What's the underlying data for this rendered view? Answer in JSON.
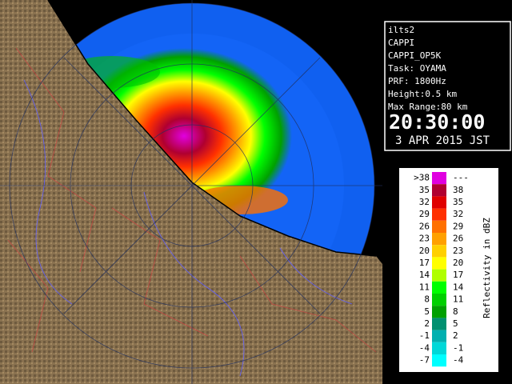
{
  "info": {
    "lines": [
      "ilts2",
      "CAPPI",
      "CAPPI_OP5K",
      "Task: OYAMA",
      "PRF: 1800Hz",
      "Height:0.5 km",
      "Max Range:80 km"
    ],
    "time": "20:30:00",
    "date": "3 APR 2015 JST"
  },
  "legend": {
    "label": "Reflectivity in dBZ",
    "rows": [
      {
        "low": ">38",
        "high": "---",
        "color": "#e000e0"
      },
      {
        "low": "35",
        "high": "38",
        "color": "#b00030"
      },
      {
        "low": "32",
        "high": "35",
        "color": "#e00000"
      },
      {
        "low": "29",
        "high": "32",
        "color": "#ff3000"
      },
      {
        "low": "26",
        "high": "29",
        "color": "#ff7000"
      },
      {
        "low": "23",
        "high": "26",
        "color": "#ffa000"
      },
      {
        "low": "20",
        "high": "23",
        "color": "#ffd000"
      },
      {
        "low": "17",
        "high": "20",
        "color": "#ffff00"
      },
      {
        "low": "14",
        "high": "17",
        "color": "#b0ff00"
      },
      {
        "low": "11",
        "high": "14",
        "color": "#00ff00"
      },
      {
        "low": "8",
        "high": "11",
        "color": "#00d000"
      },
      {
        "low": "5",
        "high": "8",
        "color": "#00a000"
      },
      {
        "low": "2",
        "high": "5",
        "color": "#009070"
      },
      {
        "low": "-1",
        "high": "2",
        "color": "#00b0b0"
      },
      {
        "low": "-4",
        "high": "-1",
        "color": "#00d8d8"
      },
      {
        "low": "-7",
        "high": "-4",
        "color": "#00ffff"
      }
    ]
  }
}
